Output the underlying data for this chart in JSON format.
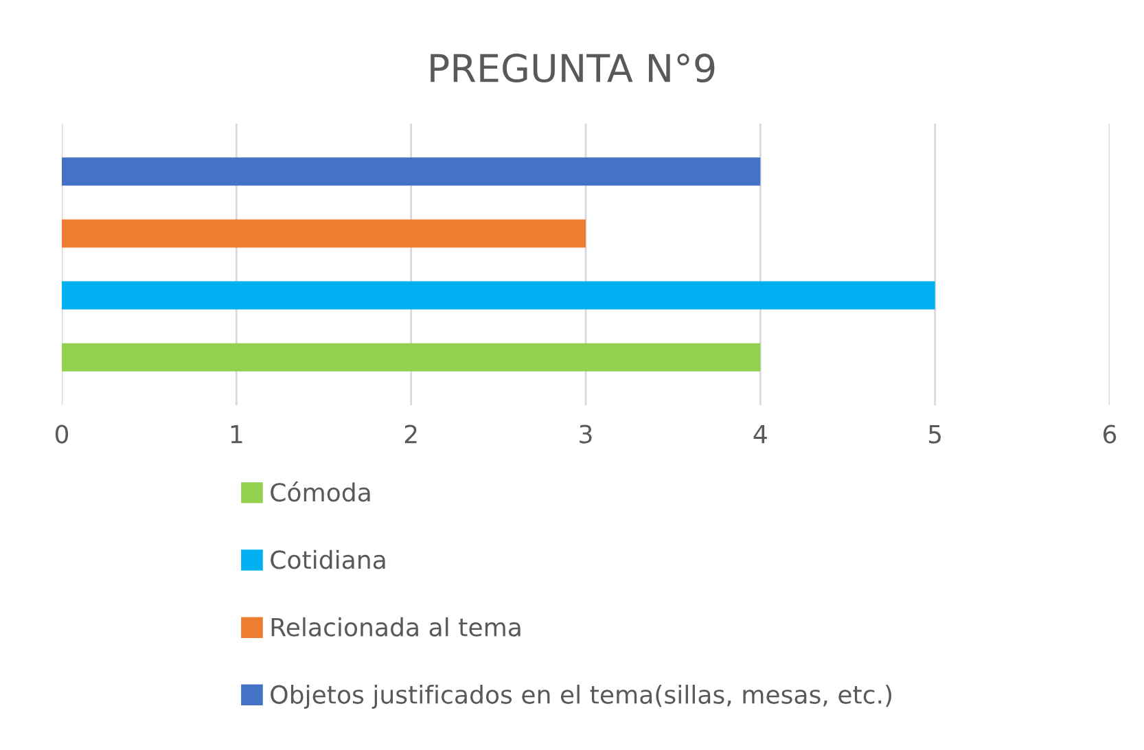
{
  "chart_data": {
    "type": "bar",
    "title": "PREGUNTA N°9",
    "orientation": "horizontal",
    "categories": [
      null
    ],
    "series": [
      {
        "name": "Cómoda",
        "color": "#92d050",
        "values": [
          4
        ]
      },
      {
        "name": "Cotidiana",
        "color": "#00b0f0",
        "values": [
          5
        ]
      },
      {
        "name": "Relacionada al tema",
        "color": "#ed7d31",
        "values": [
          3
        ]
      },
      {
        "name": "Objetos justificados en el tema(sillas, mesas, etc.)",
        "color": "#4472c4",
        "values": [
          4
        ]
      }
    ],
    "xlim": [
      0,
      6
    ],
    "xticks": [
      0,
      1,
      2,
      3,
      4,
      5,
      6
    ],
    "grid": "x",
    "legend": "bottom"
  }
}
